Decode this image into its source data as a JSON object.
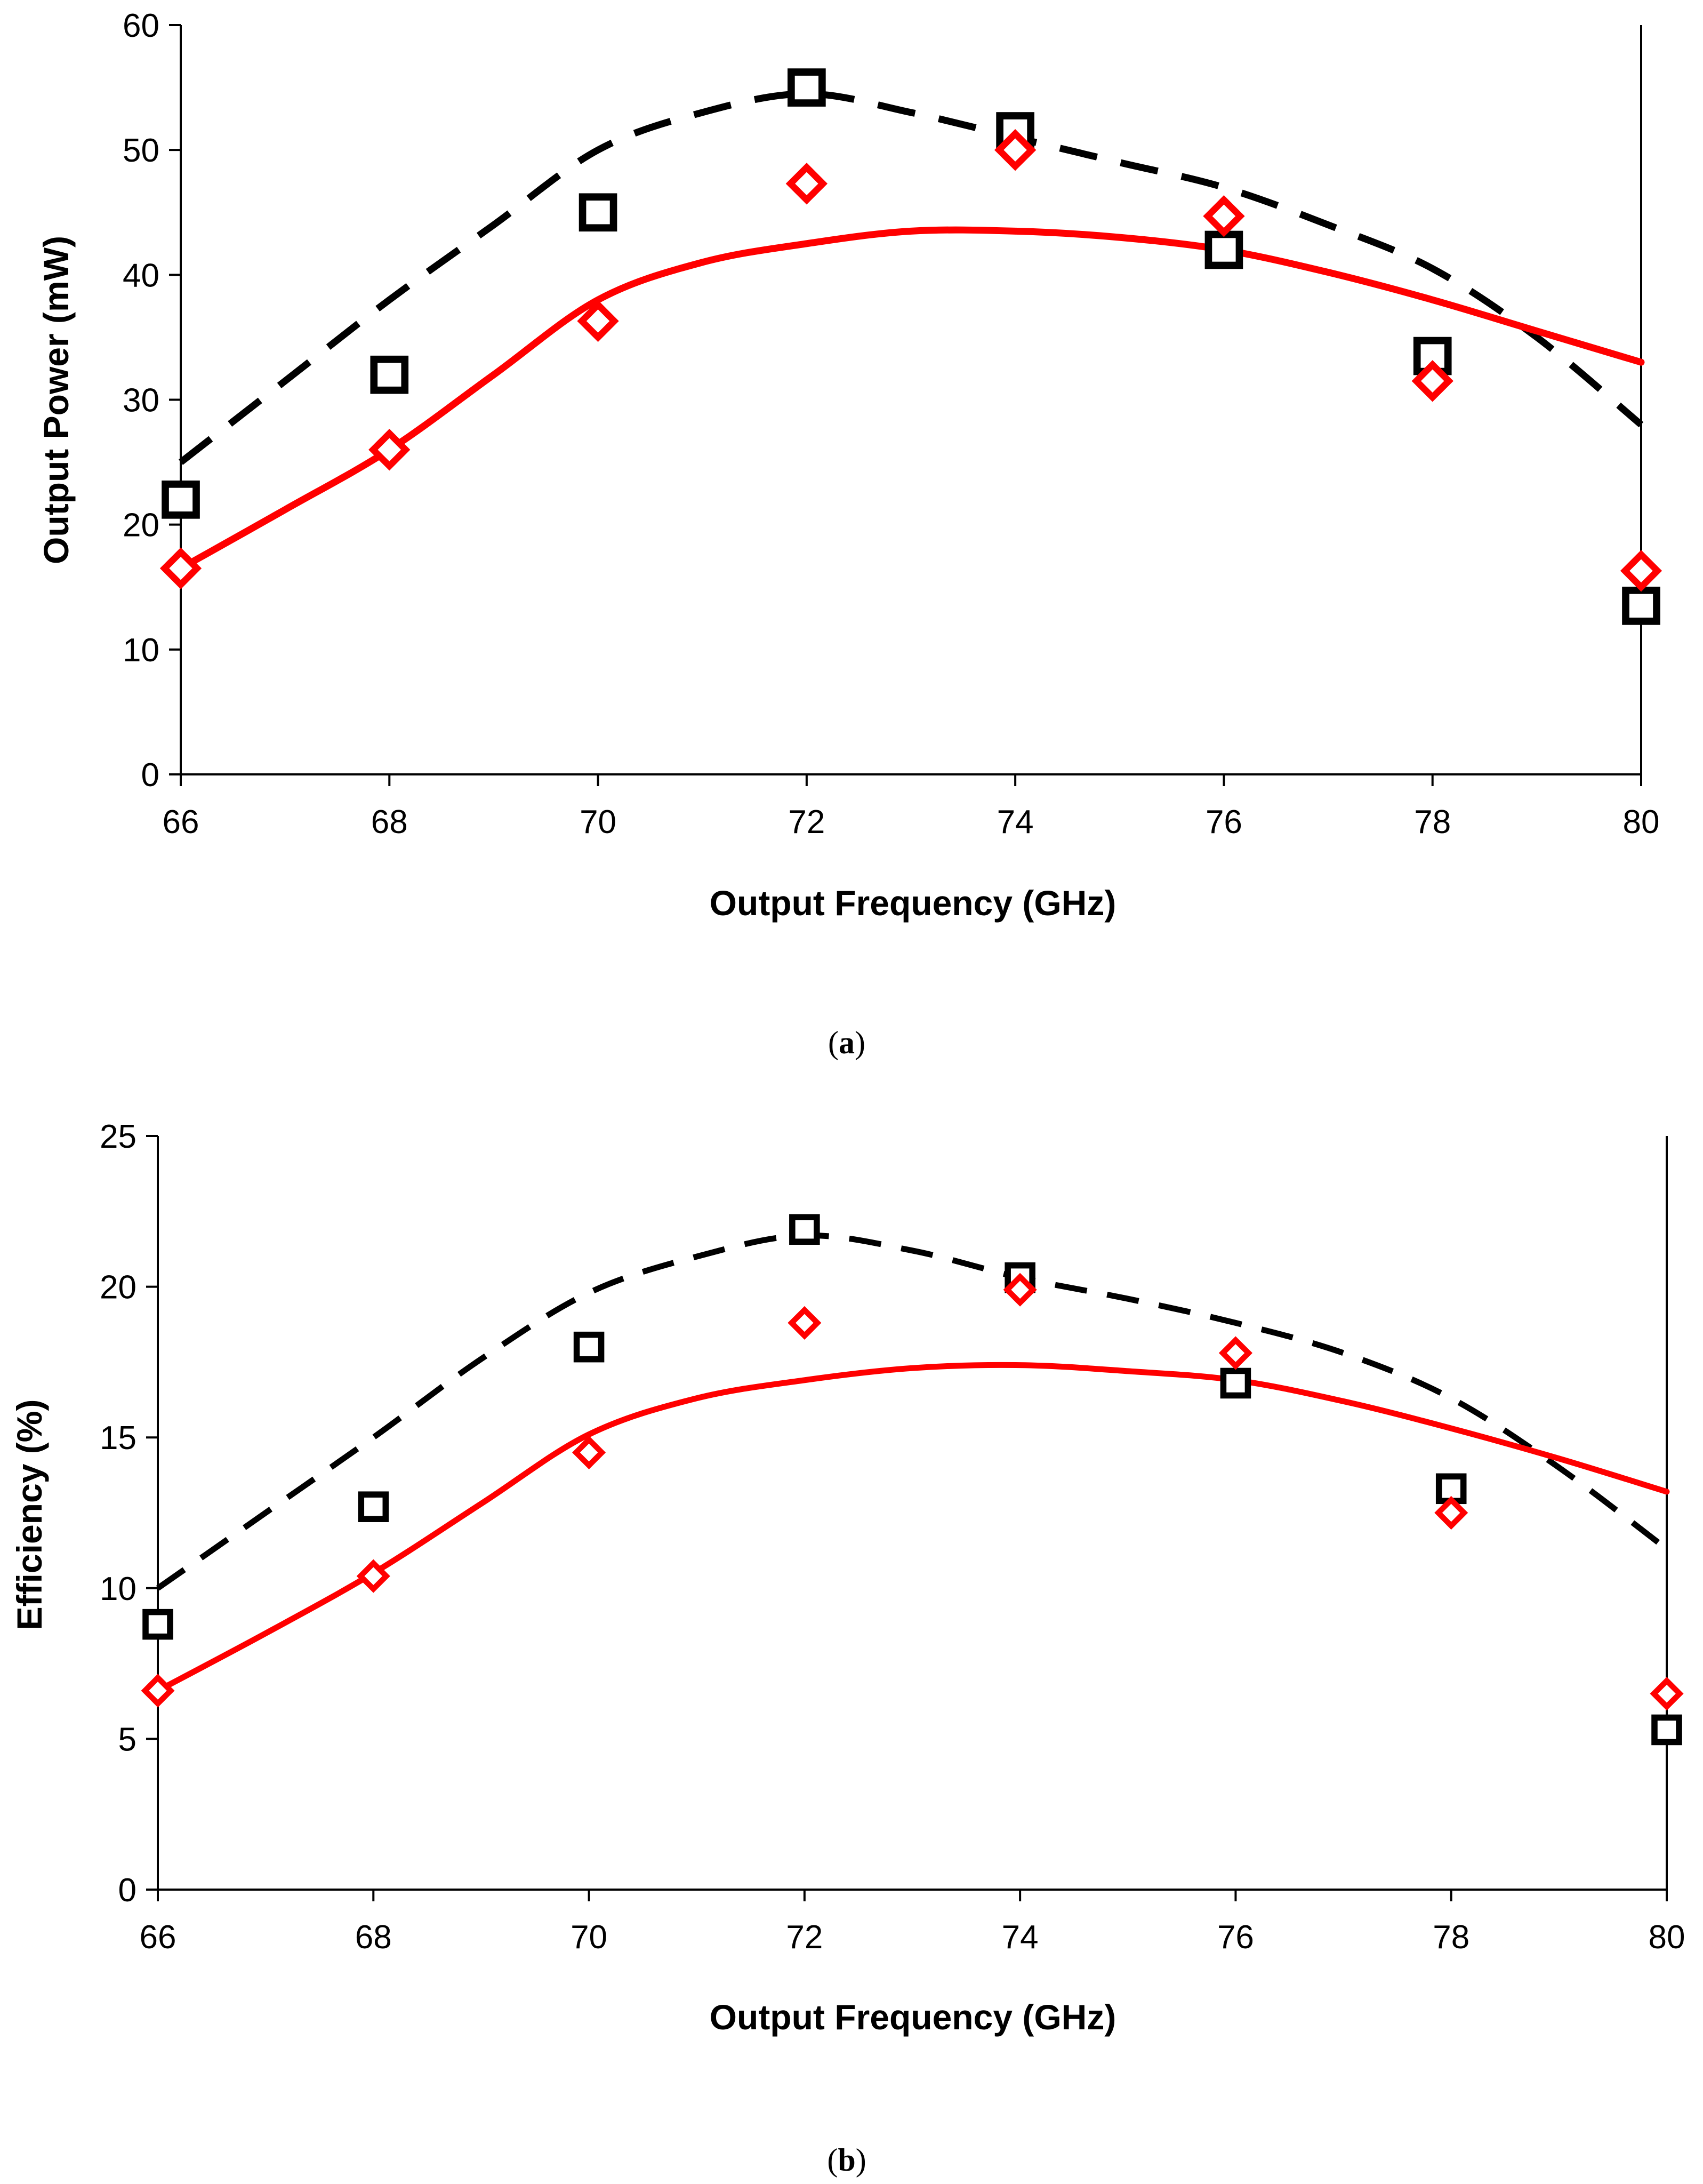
{
  "chart_data": [
    {
      "type": "line",
      "caption_letter": "a",
      "xlabel": "Output Frequency (GHz)",
      "ylabel": "Output Power (mW)",
      "xlim": [
        66,
        80
      ],
      "ylim": [
        0,
        60
      ],
      "xticks": [
        66,
        68,
        70,
        72,
        74,
        76,
        78,
        80
      ],
      "yticks": [
        0,
        10,
        20,
        30,
        40,
        50,
        60
      ],
      "series": [
        {
          "name": "simulation-dashed",
          "style": "dashed",
          "color": "#000000",
          "x": [
            66,
            67,
            68,
            69,
            70,
            71,
            72,
            73,
            74,
            75,
            76,
            77,
            78,
            79,
            80
          ],
          "y": [
            25,
            31.5,
            38,
            44,
            50,
            53,
            54.5,
            53,
            51,
            49,
            47,
            44,
            40.5,
            35,
            28
          ]
        },
        {
          "name": "simulation-solid",
          "style": "solid",
          "color": "#ff0000",
          "x": [
            66,
            67,
            68,
            69,
            70,
            71,
            72,
            73,
            74,
            75,
            76,
            77,
            78,
            79,
            80
          ],
          "y": [
            16.5,
            21.2,
            26,
            32,
            38,
            41,
            42.5,
            43.5,
            43.5,
            43,
            42,
            40.2,
            38,
            35.5,
            33
          ]
        },
        {
          "name": "measured-squares",
          "style": "marker",
          "marker": "square",
          "color": "#000000",
          "x": [
            66,
            68,
            70,
            72,
            74,
            76,
            78,
            80
          ],
          "y": [
            22,
            32,
            45,
            55,
            51.5,
            42,
            33.5,
            13.5
          ]
        },
        {
          "name": "measured-diamonds",
          "style": "marker",
          "marker": "diamond",
          "color": "#ff0000",
          "x": [
            66,
            68,
            70,
            72,
            74,
            76,
            78,
            80
          ],
          "y": [
            16.5,
            26,
            36.3,
            47.3,
            50,
            44.7,
            31.5,
            16.3
          ]
        }
      ]
    },
    {
      "type": "line",
      "caption_letter": "b",
      "xlabel": "Output Frequency (GHz)",
      "ylabel": "Efficiency (%)",
      "xlim": [
        66,
        80
      ],
      "ylim": [
        0,
        25
      ],
      "xticks": [
        66,
        68,
        70,
        72,
        74,
        76,
        78,
        80
      ],
      "yticks": [
        0,
        5,
        10,
        15,
        20,
        25
      ],
      "series": [
        {
          "name": "simulation-dashed",
          "style": "dashed",
          "color": "#000000",
          "x": [
            66,
            67,
            68,
            69,
            70,
            71,
            72,
            73,
            74,
            75,
            76,
            77,
            78,
            79,
            80
          ],
          "y": [
            10,
            12.5,
            15,
            17.6,
            19.8,
            21,
            21.7,
            21.2,
            20.3,
            19.6,
            18.8,
            17.8,
            16.3,
            14,
            11.3
          ]
        },
        {
          "name": "simulation-solid",
          "style": "solid",
          "color": "#ff0000",
          "x": [
            66,
            67,
            68,
            69,
            70,
            71,
            72,
            73,
            74,
            75,
            76,
            77,
            78,
            79,
            80
          ],
          "y": [
            6.6,
            8.5,
            10.5,
            12.8,
            15.1,
            16.3,
            16.9,
            17.3,
            17.4,
            17.2,
            16.9,
            16.2,
            15.3,
            14.3,
            13.2
          ]
        },
        {
          "name": "measured-squares",
          "style": "marker",
          "marker": "square",
          "color": "#000000",
          "x": [
            66,
            68,
            70,
            72,
            74,
            76,
            78,
            80
          ],
          "y": [
            8.8,
            12.7,
            18,
            21.9,
            20.3,
            16.8,
            13.3,
            5.3
          ]
        },
        {
          "name": "measured-diamonds",
          "style": "marker",
          "marker": "diamond",
          "color": "#ff0000",
          "x": [
            66,
            68,
            70,
            72,
            74,
            76,
            78,
            80
          ],
          "y": [
            6.6,
            10.4,
            14.5,
            18.8,
            19.9,
            17.8,
            12.5,
            6.5
          ]
        }
      ]
    }
  ]
}
